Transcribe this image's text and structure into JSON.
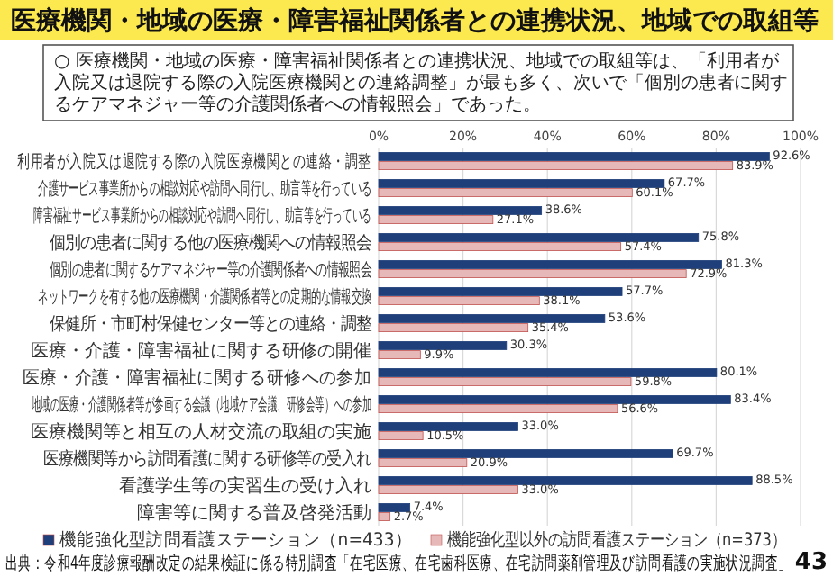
{
  "chart_data": {
    "type": "bar",
    "orientation": "horizontal",
    "title": "医療機関・地域の医療・障害福祉関係者との連携状況、地域での取組等",
    "subtitle": "○ 医療機関・地域の医療・障害福祉関係者との連携状況、地域での取組等は、「利用者が入院又は退院する際の入院医療機関との連絡調整」が最も多く、次いで「個別の患者に関するケアマネジャー等の介護関係者への情報照会」であった。",
    "categories": [
      "利用者が入院又は退院する際の入院医療機関との連絡・調整",
      "介護サービス事業所からの相談対応や訪問へ同行し、助言等を行っている",
      "障害福祉サービス事業所からの相談対応や訪問へ同行し、助言等を行っている",
      "個別の患者に関する他の医療機関への情報照会",
      "個別の患者に関するケアマネジャー等の介護関係者への情報照会",
      "ネットワークを有する他の医療機関・介護関係者等との定期的な情報交換",
      "保健所・市町村保健センター等との連絡・調整",
      "医療・介護・障害福祉に関する研修の開催",
      "医療・介護・障害福祉に関する研修への参加",
      "地域の医療・介護関係者等が参画する会議（地域ケア会議、研修会等）への参加",
      "医療機関等と相互の人材交流の取組の実施",
      "医療機関等から訪問看護に関する研修等の受入れ",
      "看護学生等の実習生の受け入れ",
      "障害等に関する普及啓発活動"
    ],
    "series": [
      {
        "name": "機能強化型訪問看護ステーション（n=433）",
        "color": "#1f3f7a",
        "values": [
          92.6,
          67.7,
          38.6,
          75.8,
          81.3,
          57.7,
          53.6,
          30.3,
          80.1,
          83.4,
          33.0,
          69.7,
          88.5,
          7.4
        ],
        "value_labels": [
          "92.6%",
          "67.7%",
          "38.6%",
          "75.8%",
          "81.3%",
          "57.7%",
          "53.6%",
          "30.3%",
          "80.1%",
          "83.4%",
          "33.0%",
          "69.7%",
          "88.5%",
          "7.4%"
        ]
      },
      {
        "name": "機能強化型以外の訪問看護ステーション（n=373）",
        "color": "#e6b9b8",
        "values": [
          83.9,
          60.1,
          27.1,
          57.4,
          72.9,
          38.1,
          35.4,
          9.9,
          59.8,
          56.6,
          10.5,
          20.9,
          33.0,
          2.7
        ],
        "value_labels": [
          "83.9%",
          "60.1%",
          "27.1%",
          "57.4%",
          "72.9%",
          "38.1%",
          "35.4%",
          "9.9%",
          "59.8%",
          "56.6%",
          "10.5%",
          "20.9%",
          "33.0%",
          "2.7%"
        ]
      }
    ],
    "xlim": [
      0,
      100
    ],
    "xticks": [
      {
        "value": 0,
        "label": "0%"
      },
      {
        "value": 20,
        "label": "20%"
      },
      {
        "value": 40,
        "label": "40%"
      },
      {
        "value": 60,
        "label": "60%"
      },
      {
        "value": 80,
        "label": "80%"
      },
      {
        "value": 100,
        "label": "100%"
      }
    ],
    "grid": "x",
    "legend": "bottom",
    "annotations": [
      "出典：令和4年度診療報酬改定の結果検証に係る特別調査「在宅医療、在宅歯科医療、在宅訪問薬剤管理及び訪問看護の実施状況調査」",
      "43"
    ]
  }
}
